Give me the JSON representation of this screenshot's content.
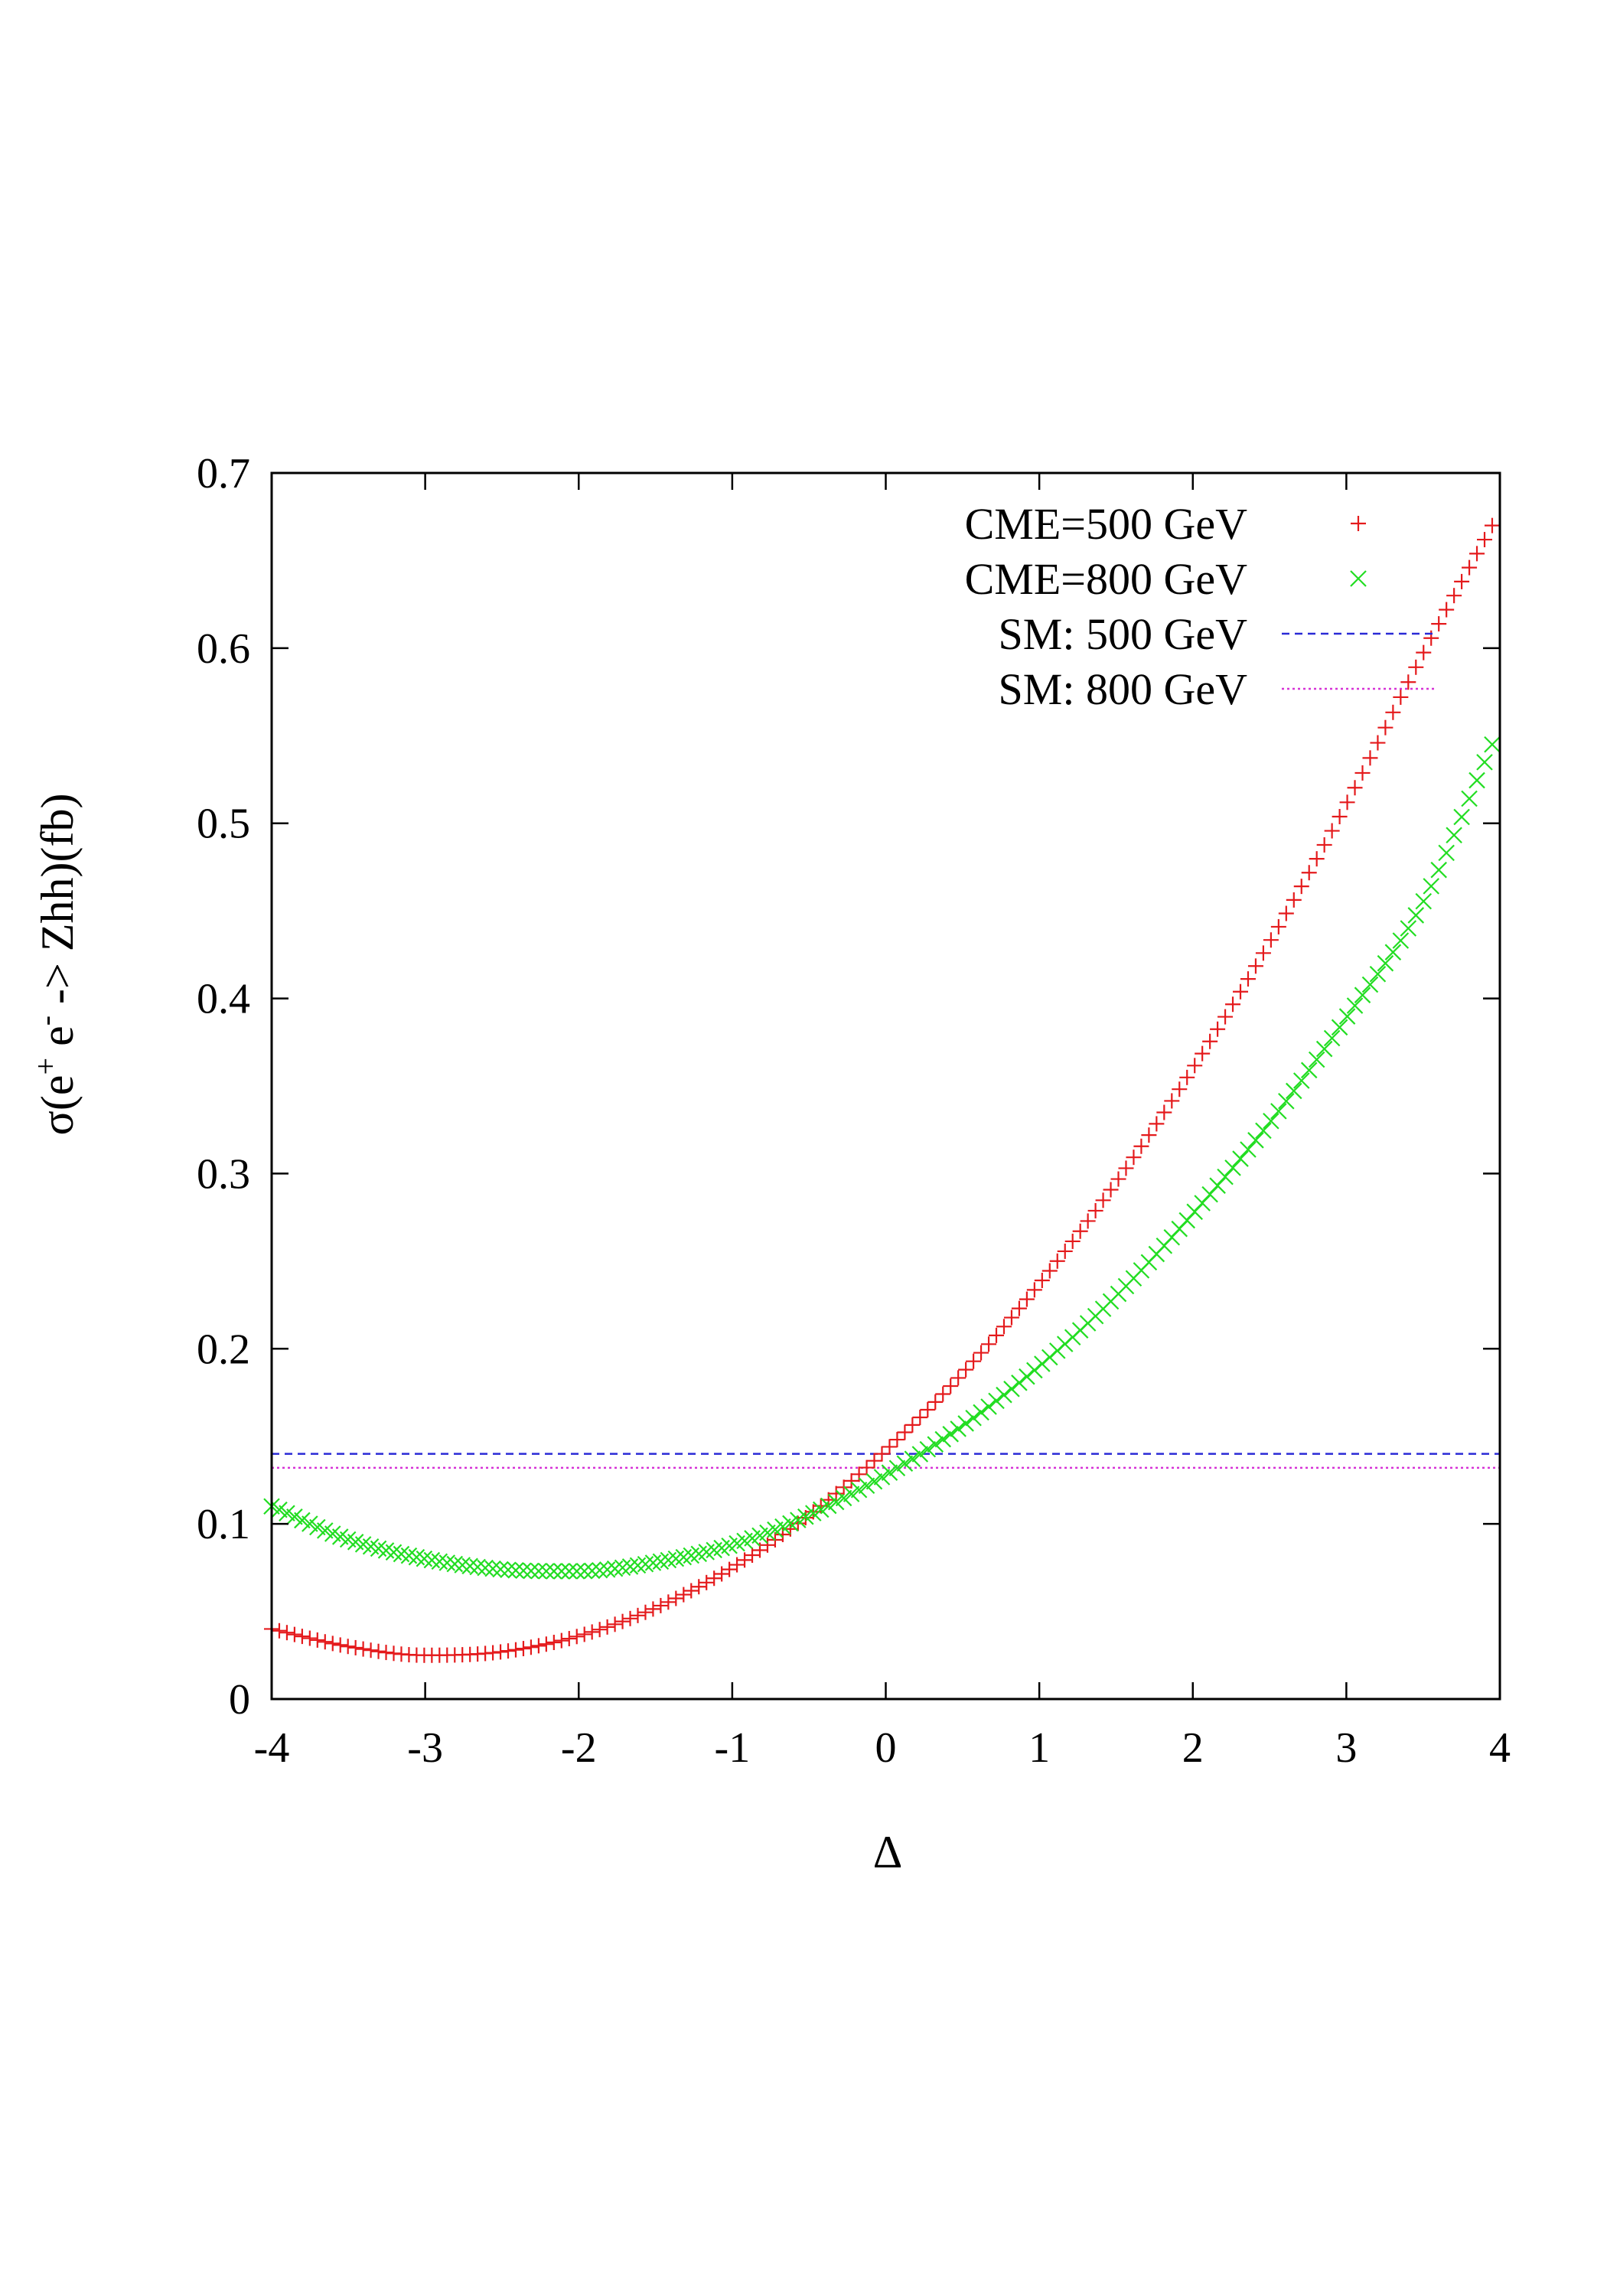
{
  "chart_data": {
    "type": "scatter",
    "title": "",
    "xlabel": "Δ",
    "ylabel": "σ(e+ e- -> Zhh)(fb)",
    "ylabel_parts": {
      "prefix": "σ(e",
      "plus": "+",
      "mid": " e",
      "minus": "-",
      "suffix": " -> Zhh)(fb)"
    },
    "xlim": [
      -4,
      4
    ],
    "ylim": [
      0,
      0.7
    ],
    "xticks": [
      -4,
      -3,
      -2,
      -1,
      0,
      1,
      2,
      3,
      4
    ],
    "xtick_labels": [
      "-4",
      "-3",
      "-2",
      "-1",
      "0",
      "1",
      "2",
      "3",
      "4"
    ],
    "yticks": [
      0,
      0.1,
      0.2,
      0.3,
      0.4,
      0.5,
      0.6,
      0.7
    ],
    "ytick_labels": [
      "0",
      "0.1",
      "0.2",
      "0.3",
      "0.4",
      "0.5",
      "0.6",
      "0.7"
    ],
    "grid": false,
    "legend_position": "top-right",
    "series": [
      {
        "name": "CME=500 GeV",
        "marker": "plus",
        "color": "#e41a1c",
        "x": [
          -4,
          -3.5,
          -3,
          -2.5,
          -2,
          -1.5,
          -1,
          -0.5,
          0,
          0.5,
          1,
          1.5,
          2,
          2.5,
          3,
          3.5,
          3.95
        ],
        "values": [
          0.04,
          0.03,
          0.025,
          0.027,
          0.036,
          0.052,
          0.075,
          0.105,
          0.142,
          0.186,
          0.237,
          0.295,
          0.36,
          0.432,
          0.511,
          0.597,
          0.67
        ]
      },
      {
        "name": "CME=800 GeV",
        "marker": "cross",
        "color": "#22dd22",
        "x": [
          -4,
          -3.5,
          -3,
          -2.5,
          -2,
          -1.5,
          -1,
          -0.5,
          0,
          0.5,
          1,
          1.5,
          2,
          2.5,
          3,
          3.5,
          3.95
        ],
        "values": [
          0.11,
          0.091,
          0.08,
          0.074,
          0.073,
          0.078,
          0.088,
          0.105,
          0.128,
          0.156,
          0.19,
          0.23,
          0.277,
          0.329,
          0.389,
          0.455,
          0.545
        ]
      },
      {
        "name": "SM: 500 GeV",
        "style": "dashed",
        "color": "#2a2ad6",
        "x": [
          -4,
          4
        ],
        "values": [
          0.14,
          0.14
        ]
      },
      {
        "name": "SM: 800 GeV",
        "style": "dotted",
        "color": "#d633d6",
        "x": [
          -4,
          4
        ],
        "values": [
          0.132,
          0.132
        ]
      }
    ]
  }
}
